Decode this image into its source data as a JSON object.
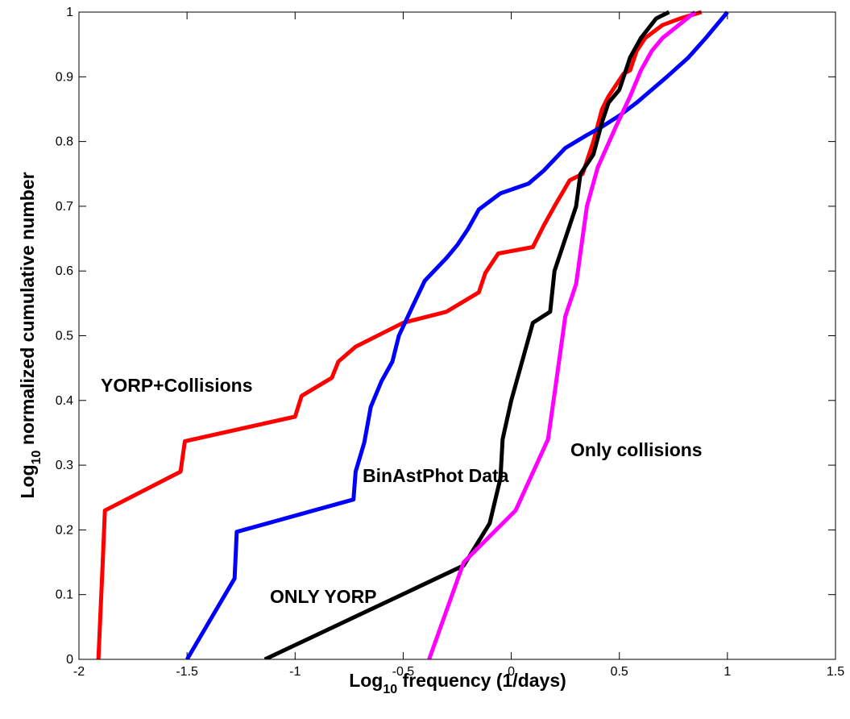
{
  "chart_data": {
    "type": "line",
    "xlabel": [
      "Log",
      "10",
      " frequency (1/days)"
    ],
    "ylabel": [
      "Log",
      "10",
      " normalized cumulative number"
    ],
    "xlim": [
      -2,
      1.5
    ],
    "ylim": [
      0,
      1
    ],
    "xticks": [
      -2,
      -1.5,
      -1,
      -0.5,
      0,
      0.5,
      1,
      1.5
    ],
    "yticks": [
      0,
      0.1,
      0.2,
      0.3,
      0.4,
      0.5,
      0.6,
      0.7,
      0.8,
      0.9,
      1
    ],
    "grid": false,
    "series": [
      {
        "name": "YORP+Collisions",
        "color": "#ff0000",
        "x": [
          -1.91,
          -1.89,
          -1.88,
          -1.53,
          -1.51,
          -1.0,
          -0.97,
          -0.83,
          -0.8,
          -0.72,
          -0.5,
          -0.3,
          -0.15,
          -0.12,
          -0.06,
          0.1,
          0.15,
          0.2,
          0.27,
          0.33,
          0.35,
          0.38,
          0.42,
          0.45,
          0.52,
          0.55,
          0.58,
          0.62,
          0.7,
          0.78,
          0.88
        ],
        "values": [
          0,
          0.15,
          0.23,
          0.29,
          0.337,
          0.375,
          0.407,
          0.435,
          0.46,
          0.483,
          0.52,
          0.537,
          0.567,
          0.597,
          0.627,
          0.637,
          0.67,
          0.7,
          0.74,
          0.75,
          0.77,
          0.8,
          0.85,
          0.87,
          0.905,
          0.91,
          0.94,
          0.96,
          0.98,
          0.99,
          1.0
        ]
      },
      {
        "name": "BinAstPhot Data",
        "color": "#0000ff",
        "x": [
          -1.5,
          -1.28,
          -1.27,
          -0.73,
          -0.72,
          -0.68,
          -0.65,
          -0.6,
          -0.55,
          -0.52,
          -0.45,
          -0.4,
          -0.3,
          -0.25,
          -0.2,
          -0.15,
          -0.05,
          0.08,
          0.15,
          0.25,
          0.35,
          0.42,
          0.5,
          0.58,
          0.65,
          0.72,
          0.82,
          0.9,
          1.0
        ],
        "values": [
          0,
          0.125,
          0.197,
          0.247,
          0.29,
          0.335,
          0.39,
          0.43,
          0.46,
          0.5,
          0.55,
          0.585,
          0.62,
          0.64,
          0.665,
          0.695,
          0.72,
          0.735,
          0.755,
          0.79,
          0.81,
          0.823,
          0.84,
          0.86,
          0.88,
          0.9,
          0.93,
          0.96,
          1.0
        ]
      },
      {
        "name": "ONLY YORP",
        "color": "#000000",
        "x": [
          -1.14,
          -0.22,
          -0.1,
          -0.05,
          -0.04,
          0.0,
          0.05,
          0.1,
          0.18,
          0.2,
          0.25,
          0.3,
          0.32,
          0.38,
          0.42,
          0.45,
          0.5,
          0.55,
          0.6,
          0.67,
          0.73
        ],
        "values": [
          0,
          0.145,
          0.21,
          0.28,
          0.34,
          0.4,
          0.46,
          0.52,
          0.537,
          0.6,
          0.65,
          0.7,
          0.75,
          0.78,
          0.83,
          0.86,
          0.88,
          0.93,
          0.96,
          0.99,
          1.0
        ]
      },
      {
        "name": "Only collisions",
        "color": "#ff00ff",
        "x": [
          -0.38,
          -0.22,
          0.02,
          0.17,
          0.2,
          0.25,
          0.3,
          0.35,
          0.4,
          0.48,
          0.55,
          0.6,
          0.65,
          0.7,
          0.85
        ],
        "values": [
          0,
          0.15,
          0.23,
          0.34,
          0.41,
          0.53,
          0.58,
          0.7,
          0.76,
          0.82,
          0.87,
          0.91,
          0.94,
          0.96,
          1.0
        ]
      }
    ]
  }
}
